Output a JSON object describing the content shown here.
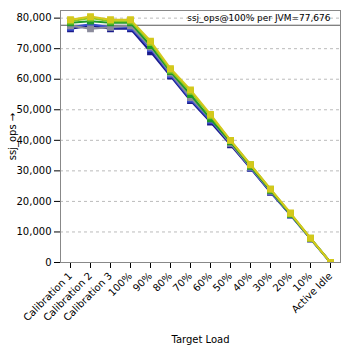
{
  "chart_data": {
    "type": "line",
    "x_label": "Target Load",
    "y_label": "ssj_ops",
    "categories": [
      "Calibration 1",
      "Calibration 2",
      "Calibration 3",
      "100%",
      "90%",
      "80%",
      "70%",
      "60%",
      "50%",
      "40%",
      "30%",
      "20%",
      "10%",
      "Active Idle"
    ],
    "series": [
      {
        "color": "#1a1a8c",
        "values": [
          76500,
          77500,
          76500,
          76500,
          69000,
          61000,
          53000,
          46000,
          38500,
          30800,
          23000,
          15500,
          7700,
          0
        ]
      },
      {
        "color": "#3a4fd0",
        "values": [
          77000,
          78000,
          77000,
          77000,
          70000,
          61500,
          53500,
          46500,
          39000,
          31000,
          23200,
          15600,
          7800,
          0
        ]
      },
      {
        "color": "#8c8c9c",
        "values": [
          77500,
          76500,
          77000,
          77500,
          70500,
          62000,
          54000,
          47000,
          39000,
          31200,
          23400,
          15700,
          7800,
          0
        ]
      },
      {
        "color": "#1f9a2a",
        "values": [
          78500,
          79000,
          78500,
          78500,
          71000,
          62500,
          55000,
          47000,
          39500,
          31500,
          23600,
          15800,
          7900,
          0
        ]
      },
      {
        "color": "#8cc820",
        "values": [
          79000,
          80000,
          79000,
          79000,
          72000,
          63000,
          56000,
          48000,
          40000,
          32000,
          24000,
          16000,
          8000,
          0
        ]
      },
      {
        "color": "#d4c81c",
        "values": [
          79500,
          80500,
          79500,
          79500,
          72500,
          63500,
          56500,
          48500,
          40000,
          32000,
          24000,
          16200,
          8000,
          0
        ]
      }
    ],
    "ylim": [
      0,
      82500
    ],
    "yticks": [
      0,
      {
        "value": 10000,
        "label": "10,000"
      },
      {
        "value": 20000,
        "label": "20,000"
      },
      {
        "value": 30000,
        "label": "30,000"
      },
      {
        "value": 40000,
        "label": "40,000"
      },
      {
        "value": 50000,
        "label": "50,000"
      },
      {
        "value": 60000,
        "label": "60,000"
      },
      {
        "value": 70000,
        "label": "70,000"
      },
      {
        "value": 80000,
        "label": "80,000"
      }
    ],
    "grid": true,
    "marker": "square",
    "annotations": [
      {
        "y": 77676,
        "text": "ssj_ops@100% per JVM=77,676"
      }
    ]
  }
}
